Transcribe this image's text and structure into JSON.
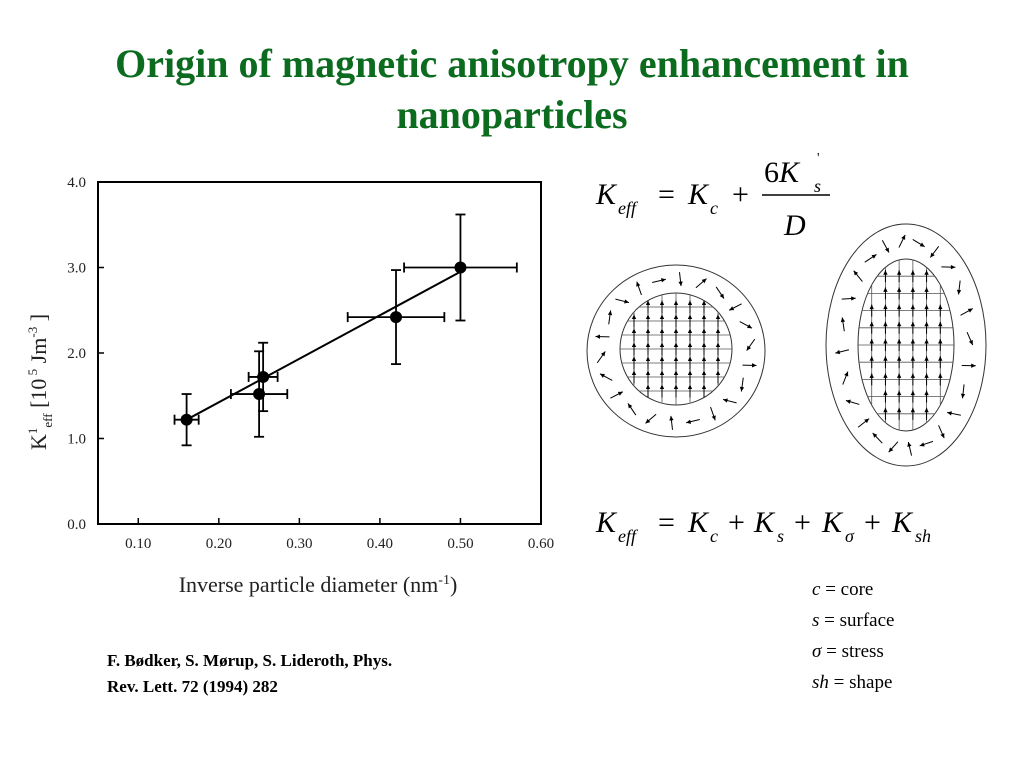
{
  "slide": {
    "title_line1": "Origin of magnetic anisotropy enhancement in",
    "title_line2": "nanoparticles",
    "title_color": "#0b6b1e"
  },
  "citation": {
    "line1": "F. Bødker, S. Mørup, S. Lideroth, Phys.",
    "line2": "Rev. Lett. 72 (1994) 282"
  },
  "equations": {
    "eq1": {
      "lhs": "K",
      "lhs_sub": "eff",
      "eq": "=",
      "k": "K",
      "k_sub": "c",
      "plus": "+",
      "numerator": "6K",
      "num_sub": "s",
      "num_sup": "'",
      "denominator": "D"
    },
    "eq2": {
      "lhs": "K",
      "lhs_sub": "eff",
      "terms": [
        {
          "k": "K",
          "sub": "c"
        },
        {
          "k": "K",
          "sub": "s"
        },
        {
          "k": "K",
          "sub": "σ"
        },
        {
          "k": "K",
          "sub": "sh"
        }
      ]
    }
  },
  "legend": [
    {
      "sym": "c",
      "eq": "=",
      "text": "core"
    },
    {
      "sym": "s",
      "eq": "=",
      "text": "surface"
    },
    {
      "sym": "σ",
      "eq": "=",
      "text": "stress"
    },
    {
      "sym": "sh",
      "eq": "=",
      "text": "shape"
    }
  ],
  "chart_data": {
    "type": "scatter",
    "xlabel": "Inverse particle diameter (nm-1)",
    "ylabel": "K1eff [10 5 Jm-3 ]",
    "xlim": [
      0.05,
      0.6
    ],
    "ylim": [
      0.0,
      4.0
    ],
    "x_ticks": [
      "0.10",
      "0.20",
      "0.30",
      "0.40",
      "0.50",
      "0.60"
    ],
    "y_ticks": [
      "0.0",
      "1.0",
      "2.0",
      "3.0",
      "4.0"
    ],
    "points": [
      {
        "x": 0.16,
        "y": 1.22,
        "xerr": 0.015,
        "yerr": 0.3
      },
      {
        "x": 0.25,
        "y": 1.52,
        "xerr": 0.035,
        "yerr": 0.5
      },
      {
        "x": 0.255,
        "y": 1.72,
        "xerr": 0.018,
        "yerr": 0.4
      },
      {
        "x": 0.42,
        "y": 2.42,
        "xerr": 0.06,
        "yerr": 0.55
      },
      {
        "x": 0.5,
        "y": 3.0,
        "xerr": 0.07,
        "yerr": 0.62
      }
    ],
    "fit_line": {
      "x": [
        0.16,
        0.5
      ],
      "y": [
        1.22,
        2.95
      ]
    },
    "grid": false
  }
}
